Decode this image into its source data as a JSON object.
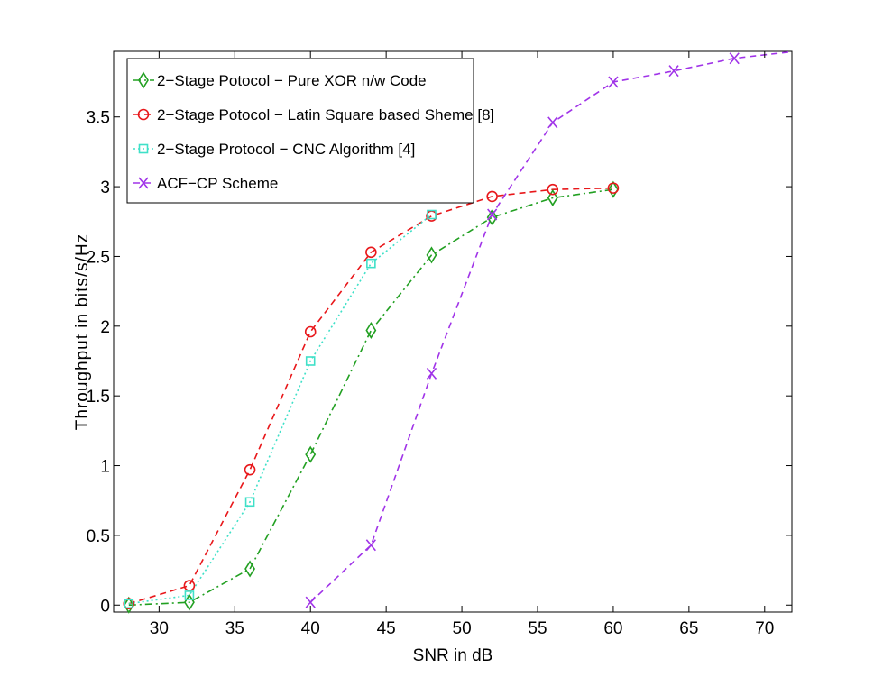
{
  "chart_data": {
    "type": "line",
    "title": "",
    "xlabel": "SNR in dB",
    "ylabel": "Throughput in bits/s/Hz",
    "xlim": [
      27,
      71.8
    ],
    "ylim": [
      -0.05,
      3.97
    ],
    "xticks": [
      30,
      35,
      40,
      45,
      50,
      55,
      60,
      65,
      70
    ],
    "xtick_labels": [
      "30",
      "35",
      "40",
      "45",
      "50",
      "55",
      "60",
      "65",
      "70"
    ],
    "yticks": [
      0,
      0.5,
      1,
      1.5,
      2,
      2.5,
      3,
      3.5
    ],
    "ytick_labels": [
      "0",
      "0.5",
      "1",
      "1.5",
      "2",
      "2.5",
      "3",
      "3.5"
    ],
    "grid": false,
    "legend_position": "top-left",
    "series": [
      {
        "name": "2−Stage Potocol − Pure XOR n/w Code",
        "color": "#22a022",
        "line_style": "dashdot",
        "marker": "diamond",
        "x": [
          28,
          32,
          36,
          40,
          44,
          48,
          52,
          56,
          60
        ],
        "y": [
          0.0,
          0.02,
          0.26,
          1.08,
          1.97,
          2.51,
          2.78,
          2.92,
          2.98
        ]
      },
      {
        "name": "2−Stage Potocol − Latin Square based Sheme [8]",
        "color": "#e8171a",
        "line_style": "dashed",
        "marker": "circle",
        "x": [
          28,
          32,
          36,
          40,
          44,
          48,
          52,
          56,
          60
        ],
        "y": [
          0.01,
          0.14,
          0.97,
          1.96,
          2.53,
          2.79,
          2.93,
          2.98,
          2.99
        ]
      },
      {
        "name": "2−Stage Protocol − CNC Algorithm [4]",
        "color": "#3fe0c8",
        "line_style": "dotted",
        "marker": "square",
        "x": [
          28,
          32,
          36,
          40,
          44,
          48
        ],
        "y": [
          0.01,
          0.07,
          0.74,
          1.75,
          2.45,
          2.8
        ]
      },
      {
        "name": "ACF−CP Scheme",
        "color": "#a033e8",
        "line_style": "dashed",
        "marker": "x",
        "x": [
          40,
          44,
          48,
          52,
          56,
          60,
          64,
          68,
          72
        ],
        "y": [
          0.02,
          0.43,
          1.66,
          2.8,
          3.46,
          3.75,
          3.83,
          3.92,
          3.97
        ]
      }
    ]
  }
}
